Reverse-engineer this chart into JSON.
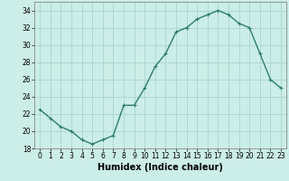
{
  "x": [
    0,
    1,
    2,
    3,
    4,
    5,
    6,
    7,
    8,
    9,
    10,
    11,
    12,
    13,
    14,
    15,
    16,
    17,
    18,
    19,
    20,
    21,
    22,
    23
  ],
  "y": [
    22.5,
    21.5,
    20.5,
    20.0,
    19.0,
    18.5,
    19.0,
    19.5,
    23.0,
    23.0,
    25.0,
    27.5,
    29.0,
    31.5,
    32.0,
    33.0,
    33.5,
    34.0,
    33.5,
    32.5,
    32.0,
    29.0,
    26.0,
    25.0
  ],
  "line_color": "#2e7d6e",
  "marker": "+",
  "marker_size": 3,
  "bg_color": "#cceee8",
  "grid_color": "#aad4ce",
  "title": "",
  "xlabel": "Humidex (Indice chaleur)",
  "ylabel": "",
  "xlim": [
    -0.5,
    23.5
  ],
  "ylim": [
    18,
    35
  ],
  "yticks": [
    18,
    20,
    22,
    24,
    26,
    28,
    30,
    32,
    34
  ],
  "xticks": [
    0,
    1,
    2,
    3,
    4,
    5,
    6,
    7,
    8,
    9,
    10,
    11,
    12,
    13,
    14,
    15,
    16,
    17,
    18,
    19,
    20,
    21,
    22,
    23
  ],
  "tick_fontsize": 5.5,
  "xlabel_fontsize": 7,
  "line_width": 1.0
}
